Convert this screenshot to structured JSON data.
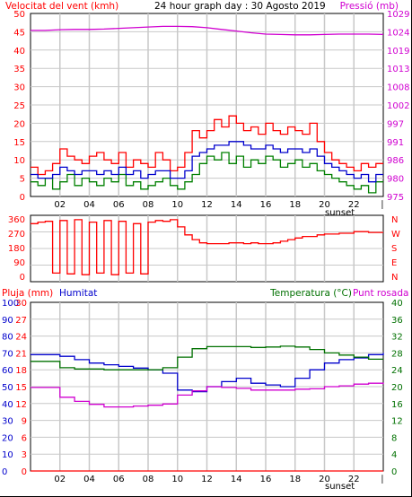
{
  "colors": {
    "wind": "#ff0000",
    "gust_green": "#008000",
    "avg_blue": "#0000cc",
    "pressure": "#d000d0",
    "direction": "#ff0000",
    "humidity": "#0000cc",
    "temperature": "#007000",
    "dewpoint": "#d000d0",
    "rain": "#ff0000",
    "grid": "#c8c8c8",
    "frame": "#000000"
  },
  "header": {
    "wind_label": "Velocitat del vent (kmh)",
    "title": "24 hour graph day : 30 Agosto 2019",
    "pressure_label": "Pressió (mb)"
  },
  "panel1": {
    "left_ticks": [
      "0",
      "5",
      "10",
      "15",
      "20",
      "25",
      "30",
      "35",
      "40",
      "45",
      "50"
    ],
    "right_ticks": [
      "975",
      "980",
      "986",
      "991",
      "997",
      "1002",
      "1008",
      "1013",
      "1019",
      "1024",
      "1029"
    ],
    "x_ticks": [
      "02",
      "04",
      "06",
      "08",
      "10",
      "12",
      "14",
      "16",
      "18",
      "20",
      "22"
    ],
    "sunset_label": "sunset"
  },
  "panel2": {
    "left_ticks": [
      "0",
      "90",
      "180",
      "270",
      "360"
    ],
    "compass_labels": [
      "N",
      "W",
      "S",
      "E",
      "N"
    ]
  },
  "panel3": {
    "rain_label": "Pluja (mm)",
    "humidity_label": "Humitat",
    "temp_label": "Temperatura (°C)",
    "dew_label": "Punt rosada",
    "humidity_ticks": [
      "0",
      "10",
      "20",
      "30",
      "40",
      "50",
      "60",
      "70",
      "80",
      "90",
      "100"
    ],
    "rain_ticks": [
      "0",
      "3",
      "6",
      "9",
      "12",
      "15",
      "18",
      "21",
      "24",
      "27",
      "30"
    ],
    "temp_ticks": [
      "0",
      "4",
      "8",
      "12",
      "16",
      "20",
      "24",
      "28",
      "32",
      "36",
      "40"
    ],
    "x_ticks": [
      "02",
      "04",
      "06",
      "08",
      "10",
      "12",
      "14",
      "16",
      "18",
      "20",
      "22"
    ],
    "sunset_label": "sunset"
  },
  "chart_data": [
    {
      "type": "line",
      "title": "24 hour graph day : 30 Agosto 2019",
      "x_unit": "hour",
      "xlim": [
        0,
        24
      ],
      "ylim": [
        0,
        50
      ],
      "y2lim": [
        975,
        1029
      ],
      "series": [
        {
          "name": "Velocitat del vent (kmh)",
          "axis": "left",
          "color": "#ff0000",
          "x": [
            0,
            0.5,
            1,
            1.5,
            2,
            2.5,
            3,
            3.5,
            4,
            4.5,
            5,
            5.5,
            6,
            6.5,
            7,
            7.5,
            8,
            8.5,
            9,
            9.5,
            10,
            10.5,
            11,
            11.5,
            12,
            12.5,
            13,
            13.5,
            14,
            14.5,
            15,
            15.5,
            16,
            16.5,
            17,
            17.5,
            18,
            18.5,
            19,
            19.5,
            20,
            20.5,
            21,
            21.5,
            22,
            22.5,
            23,
            23.5
          ],
          "values": [
            8,
            6,
            7,
            9,
            13,
            11,
            10,
            9,
            11,
            12,
            10,
            9,
            12,
            8,
            10,
            9,
            8,
            12,
            10,
            7,
            8,
            12,
            18,
            16,
            18,
            21,
            19,
            22,
            20,
            18,
            19,
            17,
            20,
            18,
            17,
            19,
            18,
            17,
            20,
            15,
            12,
            10,
            9,
            8,
            7,
            9,
            8,
            9
          ]
        },
        {
          "name": "",
          "axis": "left",
          "color": "#008000",
          "x": [
            0,
            0.5,
            1,
            1.5,
            2,
            2.5,
            3,
            3.5,
            4,
            4.5,
            5,
            5.5,
            6,
            6.5,
            7,
            7.5,
            8,
            8.5,
            9,
            9.5,
            10,
            10.5,
            11,
            11.5,
            12,
            12.5,
            13,
            13.5,
            14,
            14.5,
            15,
            15.5,
            16,
            16.5,
            17,
            17.5,
            18,
            18.5,
            19,
            19.5,
            20,
            20.5,
            21,
            21.5,
            22,
            22.5,
            23,
            23.5
          ],
          "values": [
            4,
            3,
            5,
            2,
            4,
            6,
            3,
            5,
            4,
            3,
            5,
            4,
            6,
            3,
            4,
            2,
            3,
            4,
            5,
            3,
            2,
            4,
            6,
            9,
            11,
            10,
            12,
            9,
            11,
            8,
            10,
            9,
            11,
            10,
            8,
            9,
            10,
            8,
            9,
            7,
            6,
            5,
            4,
            3,
            2,
            3,
            1,
            4
          ]
        },
        {
          "name": "",
          "axis": "left",
          "color": "#0000cc",
          "x": [
            0,
            0.5,
            1,
            1.5,
            2,
            2.5,
            3,
            3.5,
            4,
            4.5,
            5,
            5.5,
            6,
            6.5,
            7,
            7.5,
            8,
            8.5,
            9,
            9.5,
            10,
            10.5,
            11,
            11.5,
            12,
            12.5,
            13,
            13.5,
            14,
            14.5,
            15,
            15.5,
            16,
            16.5,
            17,
            17.5,
            18,
            18.5,
            19,
            19.5,
            20,
            20.5,
            21,
            21.5,
            22,
            22.5,
            23,
            23.5
          ],
          "values": [
            6,
            5,
            5,
            6,
            8,
            7,
            6,
            7,
            7,
            6,
            7,
            6,
            8,
            6,
            7,
            5,
            6,
            7,
            7,
            5,
            5,
            7,
            11,
            12,
            13,
            14,
            14,
            15,
            15,
            14,
            13,
            13,
            14,
            13,
            12,
            13,
            13,
            12,
            13,
            11,
            9,
            8,
            7,
            6,
            5,
            6,
            4,
            6
          ]
        },
        {
          "name": "Pressió (mb)",
          "axis": "right",
          "color": "#d000d0",
          "x": [
            0,
            1,
            2,
            3,
            4,
            5,
            6,
            7,
            8,
            9,
            10,
            11,
            12,
            13,
            14,
            15,
            16,
            17,
            18,
            19,
            20,
            21,
            22,
            23,
            24
          ],
          "values": [
            1024,
            1024,
            1024.2,
            1024.3,
            1024.3,
            1024.4,
            1024.6,
            1024.8,
            1025,
            1025.2,
            1025.2,
            1025.1,
            1024.8,
            1024.3,
            1023.8,
            1023.3,
            1022.9,
            1022.8,
            1022.7,
            1022.7,
            1022.8,
            1022.9,
            1022.9,
            1022.9,
            1022.8
          ]
        }
      ]
    },
    {
      "type": "line",
      "x_unit": "hour",
      "xlim": [
        0,
        24
      ],
      "ylim": [
        0,
        360
      ],
      "series": [
        {
          "name": "",
          "color": "#ff0000",
          "x": [
            0,
            0.5,
            1,
            1.5,
            2,
            2.5,
            3,
            3.5,
            4,
            4.5,
            5,
            5.5,
            6,
            6.5,
            7,
            7.5,
            8,
            8.5,
            9,
            9.5,
            10,
            10.5,
            11,
            11.5,
            12,
            12.5,
            13,
            13.5,
            14,
            14.5,
            15,
            15.5,
            16,
            16.5,
            17,
            17.5,
            18,
            18.5,
            19,
            19.5,
            20,
            20.5,
            21,
            21.5,
            22,
            22.5,
            23,
            23.5
          ],
          "values": [
            330,
            340,
            345,
            20,
            350,
            15,
            355,
            10,
            340,
            20,
            350,
            10,
            345,
            20,
            330,
            15,
            340,
            350,
            345,
            355,
            310,
            260,
            230,
            210,
            205,
            205,
            205,
            210,
            210,
            205,
            210,
            205,
            205,
            210,
            220,
            230,
            240,
            250,
            250,
            260,
            265,
            265,
            270,
            270,
            280,
            280,
            275,
            275
          ]
        }
      ]
    },
    {
      "type": "line",
      "x_unit": "hour",
      "xlim": [
        0,
        24
      ],
      "ylim": [
        0,
        100
      ],
      "y2lim": [
        0,
        40
      ],
      "series": [
        {
          "name": "Humitat",
          "axis": "left",
          "color": "#0000cc",
          "x": [
            0,
            1,
            2,
            3,
            4,
            5,
            6,
            7,
            8,
            9,
            10,
            11,
            12,
            13,
            14,
            15,
            16,
            17,
            18,
            19,
            20,
            21,
            22,
            23,
            24
          ],
          "values": [
            69,
            69,
            68,
            66,
            64,
            63,
            62,
            61,
            60,
            58,
            48,
            47,
            50,
            53,
            55,
            52,
            51,
            50,
            55,
            60,
            64,
            66,
            67,
            69,
            70
          ]
        },
        {
          "name": "Temperatura (°C)",
          "axis": "right",
          "color": "#007000",
          "x": [
            0,
            1,
            2,
            3,
            4,
            5,
            6,
            7,
            8,
            9,
            10,
            11,
            12,
            13,
            14,
            15,
            16,
            17,
            18,
            19,
            20,
            21,
            22,
            23,
            24
          ],
          "values": [
            26,
            26,
            24.5,
            24.2,
            24.2,
            24,
            24,
            24,
            24,
            24.5,
            27,
            29,
            29.5,
            29.5,
            29.5,
            29.3,
            29.4,
            29.6,
            29.4,
            28.8,
            28,
            27.5,
            27,
            26.5,
            26.5
          ]
        },
        {
          "name": "Punt rosada",
          "axis": "right",
          "color": "#d000d0",
          "x": [
            0,
            1,
            2,
            3,
            4,
            5,
            6,
            7,
            8,
            9,
            10,
            11,
            12,
            13,
            14,
            15,
            16,
            17,
            18,
            19,
            20,
            21,
            22,
            23,
            24
          ],
          "values": [
            19.8,
            19.8,
            17.5,
            16.5,
            15.8,
            15.2,
            15.2,
            15.4,
            15.6,
            15.9,
            18,
            19,
            20,
            19.8,
            19.6,
            19.2,
            19.2,
            19.2,
            19.4,
            19.5,
            20,
            20.2,
            20.6,
            20.8,
            20.6
          ]
        },
        {
          "name": "Pluja (mm)",
          "axis": "rain",
          "color": "#ff0000",
          "x": [
            0,
            24
          ],
          "values": [
            0,
            0
          ]
        }
      ]
    }
  ]
}
